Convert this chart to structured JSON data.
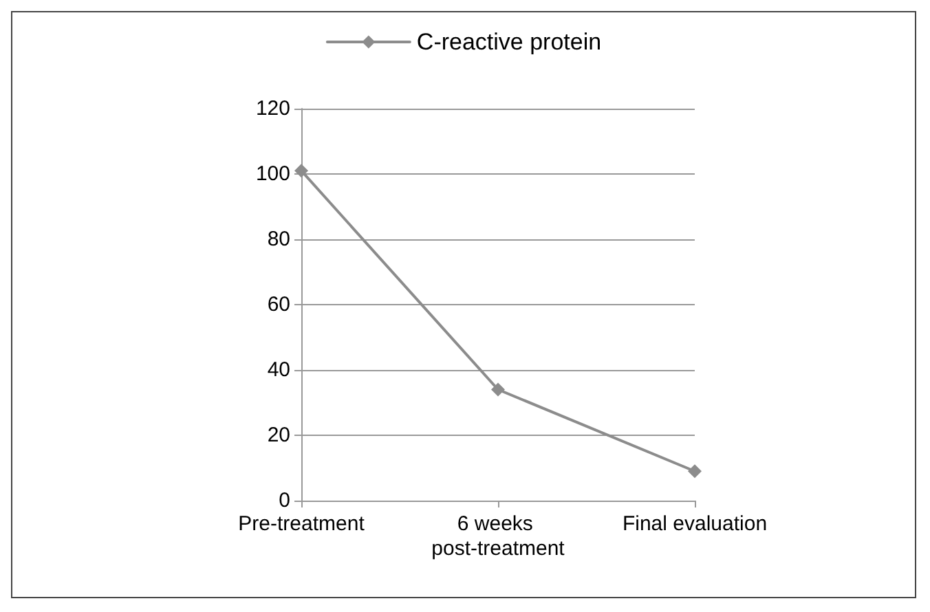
{
  "chart_data": {
    "type": "line",
    "categories": [
      "Pre-treatment",
      "6 weeks post-treatment",
      "Final evaluation"
    ],
    "series": [
      {
        "name": "C-reactive protein",
        "color": "#8c8c8c",
        "values": [
          101,
          34,
          9
        ]
      }
    ],
    "ylim": [
      0,
      120
    ],
    "yticks": [
      0,
      20,
      40,
      60,
      80,
      100,
      120
    ],
    "grid": "y",
    "legend": "top",
    "marker": "diamond",
    "line_style": "solid"
  }
}
